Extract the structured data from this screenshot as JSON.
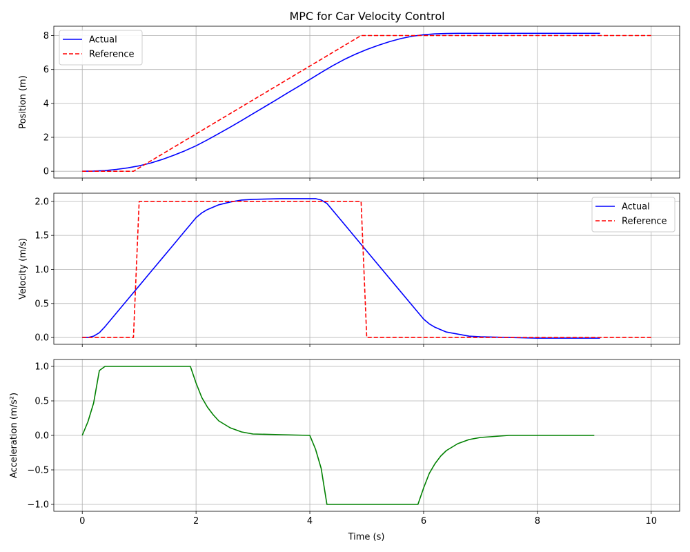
{
  "title": "MPC for Car Velocity Control",
  "xlabel": "Time (s)",
  "x_ticks": [
    "0",
    "2",
    "4",
    "6",
    "8",
    "10"
  ],
  "colors": {
    "actual": "#0000ff",
    "reference": "#ff0000",
    "acceleration": "#008000"
  },
  "chart_data": [
    {
      "type": "line",
      "ylabel": "Position (m)",
      "xlim": [
        -0.5,
        10.5
      ],
      "ylim": [
        -0.4,
        8.55
      ],
      "y_ticks": [
        0,
        2,
        4,
        6,
        8
      ],
      "y_tick_labels": [
        "0",
        "2",
        "4",
        "6",
        "8"
      ],
      "grid": true,
      "legend": "top-left",
      "series": [
        {
          "name": "Actual",
          "color": "#0000ff",
          "dash": "solid",
          "x": [
            0,
            0.2,
            0.4,
            0.6,
            0.8,
            1.0,
            1.2,
            1.4,
            1.6,
            1.8,
            2.0,
            2.2,
            2.4,
            2.6,
            2.8,
            3.0,
            3.2,
            3.4,
            3.6,
            3.8,
            4.0,
            4.2,
            4.4,
            4.6,
            4.8,
            5.0,
            5.2,
            5.4,
            5.6,
            5.8,
            6.0,
            6.2,
            6.4,
            6.6,
            6.8,
            7.0,
            7.5,
            8.0,
            8.5,
            9.1
          ],
          "y": [
            0,
            0.01,
            0.04,
            0.11,
            0.2,
            0.32,
            0.48,
            0.69,
            0.93,
            1.2,
            1.5,
            1.85,
            2.22,
            2.6,
            2.99,
            3.39,
            3.79,
            4.19,
            4.6,
            5.0,
            5.41,
            5.82,
            6.22,
            6.58,
            6.9,
            7.18,
            7.42,
            7.64,
            7.82,
            7.96,
            8.05,
            8.1,
            8.12,
            8.13,
            8.13,
            8.13,
            8.13,
            8.13,
            8.13,
            8.13
          ]
        },
        {
          "name": "Reference",
          "color": "#ff0000",
          "dash": "dashed",
          "x": [
            0,
            0.9,
            4.9,
            10
          ],
          "y": [
            0,
            0,
            8,
            8
          ]
        }
      ]
    },
    {
      "type": "line",
      "ylabel": "Velocity (m/s)",
      "xlim": [
        -0.5,
        10.5
      ],
      "ylim": [
        -0.1,
        2.12
      ],
      "y_ticks": [
        0,
        0.5,
        1.0,
        1.5,
        2.0
      ],
      "y_tick_labels": [
        "0.0",
        "0.5",
        "1.0",
        "1.5",
        "2.0"
      ],
      "grid": true,
      "legend": "top-right",
      "series": [
        {
          "name": "Actual",
          "color": "#0000ff",
          "dash": "solid",
          "x": [
            0,
            0.1,
            0.2,
            0.3,
            0.4,
            0.6,
            0.8,
            1.0,
            1.2,
            1.4,
            1.6,
            1.8,
            1.9,
            2.0,
            2.1,
            2.2,
            2.4,
            2.6,
            2.8,
            3.0,
            3.5,
            4.0,
            4.1,
            4.2,
            4.3,
            4.5,
            5.0,
            5.5,
            5.9,
            6.0,
            6.1,
            6.2,
            6.4,
            6.6,
            6.8,
            7.0,
            7.5,
            8.0,
            9.1
          ],
          "y": [
            0,
            0,
            0.02,
            0.07,
            0.16,
            0.36,
            0.56,
            0.76,
            0.96,
            1.16,
            1.36,
            1.56,
            1.66,
            1.76,
            1.83,
            1.88,
            1.95,
            1.99,
            2.02,
            2.03,
            2.04,
            2.04,
            2.04,
            2.02,
            1.97,
            1.77,
            1.27,
            0.77,
            0.37,
            0.27,
            0.2,
            0.15,
            0.08,
            0.05,
            0.02,
            0.01,
            0,
            -0.01,
            -0.01
          ]
        },
        {
          "name": "Reference",
          "color": "#ff0000",
          "dash": "dashed",
          "x": [
            0,
            0.9,
            1.0,
            4.9,
            5.0,
            10
          ],
          "y": [
            0,
            0,
            2,
            2,
            0,
            0
          ]
        }
      ]
    },
    {
      "type": "line",
      "ylabel": "Acceleration (m/s²)",
      "xlim": [
        -0.5,
        10.5
      ],
      "ylim": [
        -1.1,
        1.1
      ],
      "y_ticks": [
        -1.0,
        -0.5,
        0,
        0.5,
        1.0
      ],
      "y_tick_labels": [
        "−1.0",
        "−0.5",
        "0.0",
        "0.5",
        "1.0"
      ],
      "grid": true,
      "legend": "none",
      "series": [
        {
          "name": "",
          "color": "#008000",
          "dash": "solid",
          "x": [
            0,
            0.1,
            0.2,
            0.3,
            0.4,
            1.9,
            2.0,
            2.1,
            2.2,
            2.3,
            2.4,
            2.6,
            2.8,
            3.0,
            3.5,
            4.0,
            4.1,
            4.2,
            4.3,
            5.9,
            6.0,
            6.1,
            6.2,
            6.3,
            6.4,
            6.6,
            6.8,
            7.0,
            7.5,
            8.0,
            9.0
          ],
          "y": [
            0,
            0.2,
            0.47,
            0.94,
            1.0,
            1.0,
            0.76,
            0.55,
            0.41,
            0.3,
            0.21,
            0.11,
            0.05,
            0.02,
            0.01,
            0,
            -0.2,
            -0.48,
            -1.0,
            -1.0,
            -0.76,
            -0.55,
            -0.41,
            -0.3,
            -0.22,
            -0.12,
            -0.06,
            -0.03,
            0,
            0,
            0
          ]
        }
      ]
    }
  ]
}
